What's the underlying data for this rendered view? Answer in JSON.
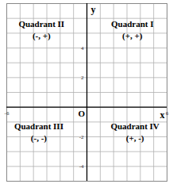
{
  "chart_data": {
    "type": "coordinate_plane",
    "x_label": "x",
    "y_label": "y",
    "xlim": [
      -6,
      6
    ],
    "ylim": [
      -5,
      7
    ],
    "xticks": [
      -6,
      6
    ],
    "yticks": [
      -4,
      -2,
      2,
      4
    ],
    "grid": true,
    "grid_x": [
      -6,
      -5,
      -4,
      -3,
      -2,
      -1,
      0,
      1,
      2,
      3,
      4,
      5,
      6
    ],
    "grid_y": [
      -5,
      -4,
      -3,
      -2,
      -1,
      0,
      1,
      2,
      3,
      4,
      5,
      6,
      7
    ],
    "annotations": [
      {
        "text": "Quadrant II",
        "x": -3.4,
        "y": 5.6
      },
      {
        "text": "(-, +)",
        "x": -3.4,
        "y": 4.8
      },
      {
        "text": "Quadrant I",
        "x": 3.4,
        "y": 5.6
      },
      {
        "text": "(+, +)",
        "x": 3.4,
        "y": 4.8
      },
      {
        "text": "Quadrant III",
        "x": -3.6,
        "y": -1.3
      },
      {
        "text": "(-, -)",
        "x": -3.6,
        "y": -2.1
      },
      {
        "text": "Quadrant IV",
        "x": 3.6,
        "y": -1.3
      },
      {
        "text": "(+, -)",
        "x": 3.6,
        "y": -2.1
      },
      {
        "text": "O",
        "x": -0.4,
        "y": -0.45
      }
    ]
  }
}
